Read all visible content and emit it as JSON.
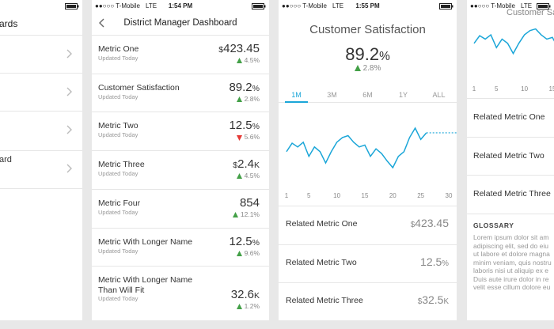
{
  "screen_list": {
    "title": "ards",
    "row_label": "ard"
  },
  "dashboard": {
    "carrier": "●●○○○ T-Mobile",
    "network": "LTE",
    "time": "1:54 PM",
    "title": "District Manager Dashboard",
    "metrics": [
      {
        "name": "Metric One",
        "updated": "Updated Today",
        "value": "$423.45",
        "change": "4.5%",
        "trend": "up"
      },
      {
        "name": "Customer Satisfaction",
        "updated": "Updated Today",
        "value": "89.2%",
        "change": "2.8%",
        "trend": "up"
      },
      {
        "name": "Metric Two",
        "updated": "Updated Today",
        "value": "12.5%",
        "change": "5.6%",
        "trend": "down"
      },
      {
        "name": "Metric Three",
        "updated": "Updated Today",
        "value": "$2.4K",
        "change": "4.5%",
        "trend": "up"
      },
      {
        "name": "Metric Four",
        "updated": "Updated Today",
        "value": "854",
        "change": "12.1%",
        "trend": "up"
      },
      {
        "name": "Metric With Longer Name",
        "updated": "Updated Today",
        "value": "12.5%",
        "change": "9.6%",
        "trend": "up"
      },
      {
        "name": "Metric With Longer Name Than Will Fit",
        "updated": "Updated Today",
        "value": "32.6K",
        "change": "1.2%",
        "trend": "up"
      }
    ]
  },
  "detail": {
    "carrier": "●●○○○ T-Mobile",
    "network": "LTE",
    "time": "1:55 PM",
    "title": "Customer Satisfaction",
    "value": "89.2%",
    "change": "2.8%",
    "trend": "up",
    "tabs": [
      "1M",
      "3M",
      "6M",
      "1Y",
      "ALL"
    ],
    "active_tab": 0,
    "chart": {
      "type": "line",
      "color": "#1ba6d8",
      "x": [
        1,
        2,
        3,
        4,
        5,
        6,
        7,
        8,
        9,
        10,
        11,
        12,
        13,
        14,
        15,
        16,
        17,
        18,
        19,
        20,
        21,
        22,
        23,
        24,
        25,
        26
      ],
      "values": [
        88.5,
        89.4,
        89.0,
        89.5,
        88.0,
        89.0,
        88.5,
        87.3,
        88.5,
        89.5,
        90.0,
        90.2,
        89.5,
        89.0,
        89.2,
        88.0,
        88.8,
        88.3,
        87.5,
        86.8,
        88.0,
        88.5,
        90.0,
        91.0,
        89.8,
        90.5
      ],
      "xlim": [
        1,
        30
      ],
      "xticks": [
        1,
        5,
        10,
        15,
        20,
        25,
        30
      ]
    },
    "related": [
      {
        "name": "Related Metric One",
        "value": "$423.45"
      },
      {
        "name": "Related Metric Two",
        "value": "12.5%"
      },
      {
        "name": "Related Metric Three",
        "value": "$32.5K"
      }
    ]
  },
  "detail_scrolled": {
    "carrier": "●●○○○ T-Mobile",
    "network": "LTE",
    "title": "Customer Satisfac",
    "related": [
      "Related Metric One",
      "Related Metric Two",
      "Related Metric Three"
    ],
    "glossary_title": "GLOSSARY",
    "glossary_lines": [
      "Lorem ipsum dolor sit am",
      "adipiscing elit, sed do eiu",
      "ut labore et dolore magna",
      "minim veniam, quis nostru",
      "laboris nisi ut aliquip ex e",
      "Duis aute irure dolor in re",
      "velit esse cillum dolore eu"
    ]
  }
}
